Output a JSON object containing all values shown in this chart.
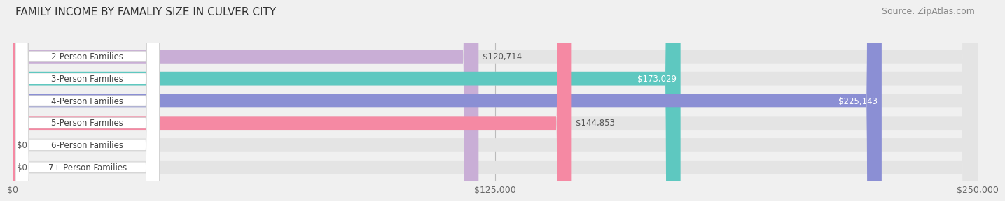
{
  "title": "FAMILY INCOME BY FAMALIY SIZE IN CULVER CITY",
  "source": "Source: ZipAtlas.com",
  "categories": [
    "2-Person Families",
    "3-Person Families",
    "4-Person Families",
    "5-Person Families",
    "6-Person Families",
    "7+ Person Families"
  ],
  "values": [
    120714,
    173029,
    225143,
    144853,
    0,
    0
  ],
  "bar_colors": [
    "#c9aed6",
    "#5ec8c0",
    "#8b8fd4",
    "#f589a3",
    "#f5c9a0",
    "#f5a8a8"
  ],
  "value_inside": [
    false,
    true,
    true,
    false,
    false,
    false
  ],
  "xlim": [
    0,
    250000
  ],
  "xticks": [
    0,
    125000,
    250000
  ],
  "xtick_labels": [
    "$0",
    "$125,000",
    "$250,000"
  ],
  "background_color": "#f0f0f0",
  "bar_bg_color": "#e4e4e4",
  "title_fontsize": 11,
  "source_fontsize": 9,
  "label_fontsize": 8.5,
  "value_fontsize": 8.5,
  "bar_height": 0.62
}
